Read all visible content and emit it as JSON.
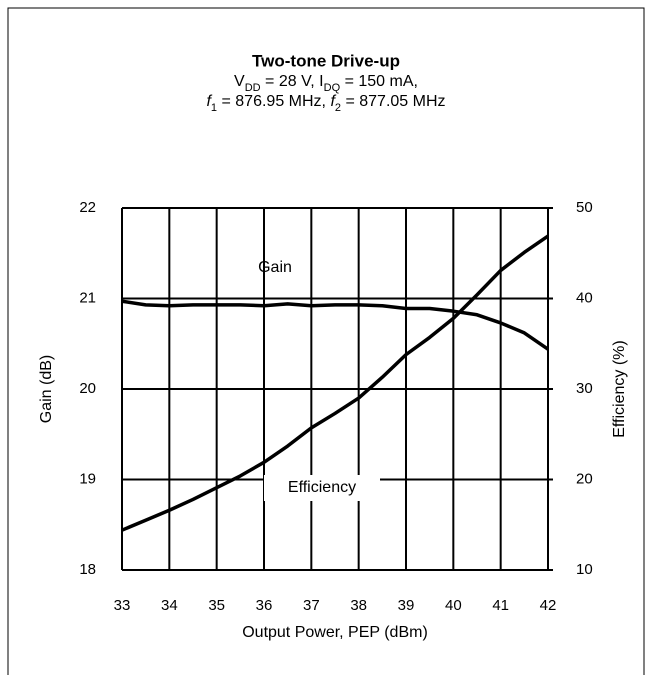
{
  "chart_data": {
    "type": "line",
    "title": "Two-tone Drive-up",
    "subtitle": [
      [
        {
          "t": "V"
        },
        {
          "t": "DD",
          "sub": true
        },
        {
          "t": " = 28 V, I"
        },
        {
          "t": "DQ",
          "sub": true
        },
        {
          "t": " = 150 mA,"
        }
      ],
      [
        {
          "t": "f",
          "italic": true
        },
        {
          "t": "1",
          "sub": true
        },
        {
          "t": " = 876.95 MHz, "
        },
        {
          "t": "f",
          "italic": true
        },
        {
          "t": "2",
          "sub": true
        },
        {
          "t": " = 877.05 MHz"
        }
      ]
    ],
    "x_label": "Output Power, PEP (dBm)",
    "y_label": "Gain (dB)",
    "y2_label": "Efficiency (%)",
    "x": [
      33,
      33.5,
      34,
      34.5,
      35,
      35.5,
      36,
      36.5,
      37,
      37.5,
      38,
      38.5,
      39,
      39.5,
      40,
      40.5,
      41,
      41.5,
      42
    ],
    "series": [
      {
        "name": "Gain",
        "color": "#000000",
        "values": [
          20.97,
          20.93,
          20.92,
          20.93,
          20.93,
          20.93,
          20.92,
          20.94,
          20.92,
          20.93,
          20.93,
          20.92,
          20.89,
          20.89,
          20.86,
          20.82,
          20.73,
          20.62,
          20.44
        ]
      },
      {
        "name": "Efficiency",
        "color": "#000000",
        "axis": "y2",
        "values": [
          14.4,
          15.5,
          16.6,
          17.8,
          19.1,
          20.4,
          21.9,
          23.7,
          25.7,
          27.3,
          29.0,
          31.3,
          33.8,
          35.7,
          37.8,
          40.4,
          43.1,
          45.1,
          46.9
        ]
      }
    ],
    "xlim": [
      33,
      42
    ],
    "xticks": [
      33,
      34,
      35,
      36,
      37,
      38,
      39,
      40,
      41,
      42
    ],
    "ylim": [
      18,
      22
    ],
    "yticks": [
      18,
      19,
      20,
      21,
      22
    ],
    "y2lim": [
      10,
      50
    ],
    "y2ticks": [
      10,
      20,
      30,
      40,
      50
    ],
    "grid": true
  }
}
